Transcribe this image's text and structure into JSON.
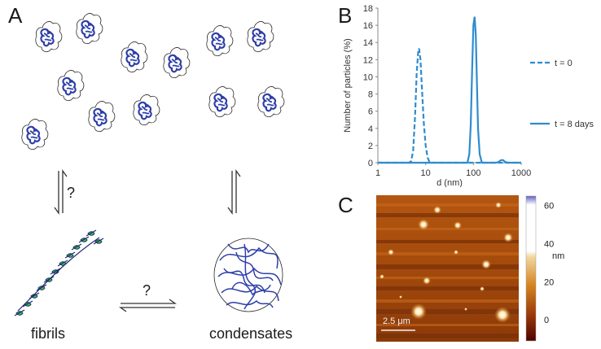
{
  "panels": {
    "A": {
      "letter": "A",
      "question_vertical": "?",
      "question_horizontal": "?",
      "label_fibrils": "fibrils",
      "label_condensates": "condensates"
    },
    "B": {
      "letter": "B"
    },
    "C": {
      "letter": "C",
      "scale_bar_label": "2.5 μm",
      "colorbar_unit": "nm",
      "colorbar_ticks": [
        "60",
        "40",
        "20",
        "0"
      ],
      "colorbar_tick_values": [
        60,
        40,
        20,
        0
      ],
      "colorbar_range": [
        -11,
        65
      ]
    }
  },
  "colors": {
    "protein": "#2e3fa8",
    "fibril_green": "#33cc33",
    "series_blue": "#2e8ccf",
    "afm_dark": "#5a1f08",
    "afm_mid": "#b8560e",
    "afm_light": "#ffffff"
  },
  "chart_data": {
    "type": "line",
    "title": "",
    "xlabel": "d (nm)",
    "ylabel": "Number of particles (%)",
    "xscale": "log",
    "xlim": [
      1,
      1000
    ],
    "ylim": [
      0,
      18
    ],
    "xticks": [
      "1",
      "10",
      "100",
      "1000"
    ],
    "xtick_values": [
      1,
      10,
      100,
      1000
    ],
    "yticks": [
      "0",
      "2",
      "4",
      "6",
      "8",
      "10",
      "12",
      "14",
      "16",
      "18"
    ],
    "ytick_values": [
      0,
      2,
      4,
      6,
      8,
      10,
      12,
      14,
      16,
      18
    ],
    "legend_position": "right",
    "series": [
      {
        "name": "t = 0",
        "style": "dashed",
        "x": [
          4.5,
          5.0,
          5.5,
          6.0,
          6.5,
          7.0,
          7.3,
          7.8,
          8.5,
          9.2,
          10,
          11,
          12,
          14
        ],
        "y": [
          0,
          0.2,
          1.5,
          5.5,
          10.5,
          13.0,
          13.3,
          12.0,
          8.0,
          4.5,
          2.0,
          0.6,
          0.1,
          0
        ]
      },
      {
        "name": "t = 8 days",
        "style": "solid",
        "x": [
          75,
          82,
          88,
          94,
          100,
          106,
          112,
          118,
          125,
          135,
          150,
          300,
          340,
          380,
          420,
          460,
          520,
          1000
        ],
        "y": [
          0,
          1.0,
          4.5,
          11.0,
          16.0,
          17.0,
          15.0,
          9.5,
          4.0,
          1.0,
          0,
          0,
          0.1,
          0.3,
          0.3,
          0.1,
          0,
          0
        ]
      }
    ]
  }
}
